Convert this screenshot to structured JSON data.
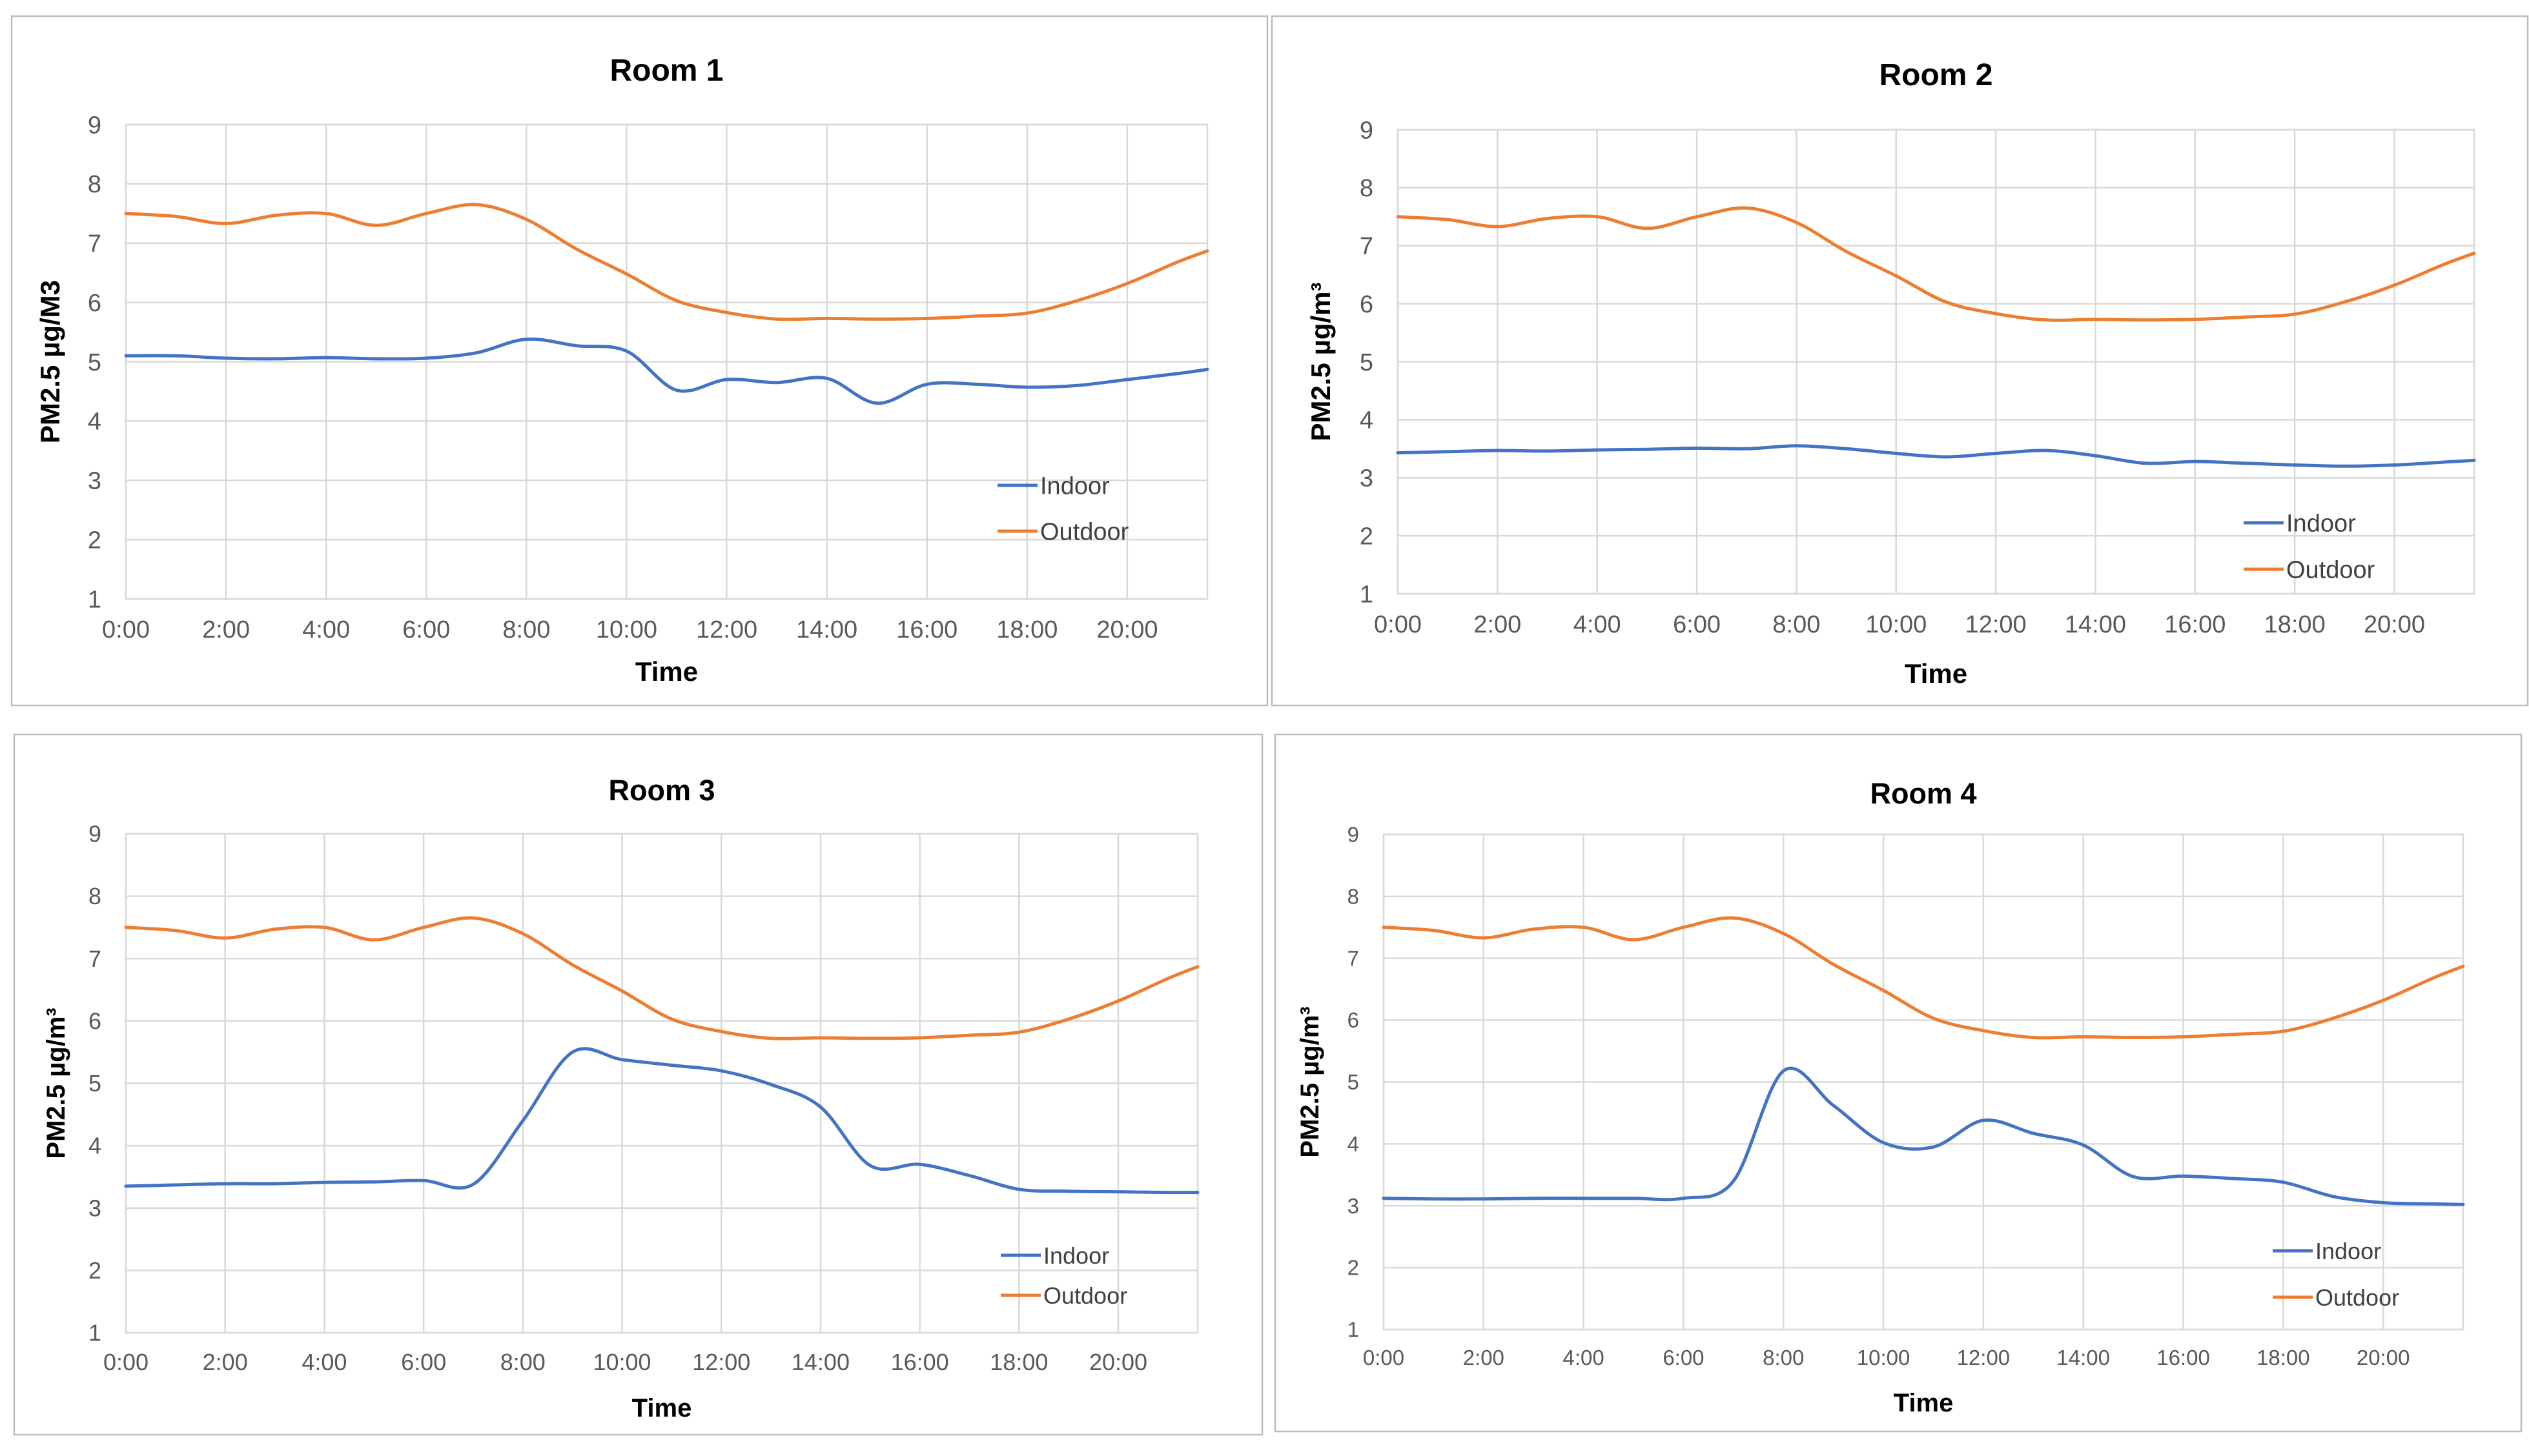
{
  "colors": {
    "indoor": "#4472C4",
    "outdoor": "#ED7D31"
  },
  "chart_data": [
    {
      "type": "line",
      "title": "Room 1",
      "xlabel": "Time",
      "ylabel": "PM2.5 µg/M3",
      "ylim": [
        1,
        9
      ],
      "yticks": [
        "1",
        "2",
        "3",
        "4",
        "5",
        "6",
        "7",
        "8",
        "9"
      ],
      "xticks": [
        "0:00",
        "2:00",
        "4:00",
        "6:00",
        "8:00",
        "10:00",
        "12:00",
        "14:00",
        "16:00",
        "18:00",
        "20:00"
      ],
      "legend": {
        "position": "bottom-right"
      },
      "x": [
        0,
        1,
        2,
        3,
        4,
        5,
        6,
        7,
        8,
        9,
        10,
        11,
        12,
        13,
        14,
        15,
        16,
        17,
        18,
        19,
        20,
        21,
        21.6
      ],
      "series": [
        {
          "name": "Indoor",
          "color_key": "indoor",
          "values": [
            5.1,
            5.1,
            5.06,
            5.05,
            5.07,
            5.05,
            5.06,
            5.15,
            5.38,
            5.27,
            5.18,
            4.52,
            4.7,
            4.65,
            4.72,
            4.3,
            4.62,
            4.62,
            4.57,
            4.6,
            4.7,
            4.8,
            4.87
          ]
        },
        {
          "name": "Outdoor",
          "color_key": "outdoor",
          "values": [
            7.5,
            7.45,
            7.33,
            7.47,
            7.5,
            7.3,
            7.5,
            7.65,
            7.4,
            6.9,
            6.48,
            6.03,
            5.83,
            5.72,
            5.73,
            5.72,
            5.73,
            5.77,
            5.82,
            6.03,
            6.32,
            6.68,
            6.87
          ]
        }
      ]
    },
    {
      "type": "line",
      "title": "Room 2",
      "xlabel": "Time",
      "ylabel": "PM2.5 µg/m³",
      "ylim": [
        1,
        9
      ],
      "yticks": [
        "1",
        "2",
        "3",
        "4",
        "5",
        "6",
        "7",
        "8",
        "9"
      ],
      "xticks": [
        "0:00",
        "2:00",
        "4:00",
        "6:00",
        "8:00",
        "10:00",
        "12:00",
        "14:00",
        "16:00",
        "18:00",
        "20:00"
      ],
      "legend": {
        "position": "bottom-right"
      },
      "x": [
        0,
        1,
        2,
        3,
        4,
        5,
        6,
        7,
        8,
        9,
        10,
        11,
        12,
        13,
        14,
        15,
        16,
        17,
        18,
        19,
        20,
        21,
        21.6
      ],
      "series": [
        {
          "name": "Indoor",
          "color_key": "indoor",
          "values": [
            3.43,
            3.45,
            3.47,
            3.46,
            3.48,
            3.49,
            3.51,
            3.5,
            3.55,
            3.5,
            3.42,
            3.36,
            3.42,
            3.47,
            3.38,
            3.25,
            3.28,
            3.25,
            3.22,
            3.2,
            3.22,
            3.27,
            3.3
          ]
        },
        {
          "name": "Outdoor",
          "color_key": "outdoor",
          "values": [
            7.5,
            7.45,
            7.33,
            7.47,
            7.5,
            7.3,
            7.5,
            7.65,
            7.4,
            6.9,
            6.48,
            6.03,
            5.83,
            5.72,
            5.73,
            5.72,
            5.73,
            5.77,
            5.82,
            6.03,
            6.32,
            6.68,
            6.87
          ]
        }
      ]
    },
    {
      "type": "line",
      "title": "Room 3",
      "xlabel": "Time",
      "ylabel": "PM2.5 µg/m³",
      "ylim": [
        1,
        9
      ],
      "yticks": [
        "1",
        "2",
        "3",
        "4",
        "5",
        "6",
        "7",
        "8",
        "9"
      ],
      "xticks": [
        "0:00",
        "2:00",
        "4:00",
        "6:00",
        "8:00",
        "10:00",
        "12:00",
        "14:00",
        "16:00",
        "18:00",
        "20:00"
      ],
      "legend": {
        "position": "bottom-right"
      },
      "x": [
        0,
        1,
        2,
        3,
        4,
        5,
        6,
        7,
        8,
        9,
        10,
        11,
        12,
        13,
        14,
        15,
        16,
        17,
        18,
        19,
        20,
        21,
        21.6
      ],
      "series": [
        {
          "name": "Indoor",
          "color_key": "indoor",
          "values": [
            3.35,
            3.37,
            3.39,
            3.39,
            3.41,
            3.42,
            3.44,
            3.38,
            4.4,
            5.5,
            5.38,
            5.29,
            5.2,
            4.98,
            4.62,
            3.68,
            3.7,
            3.52,
            3.3,
            3.27,
            3.26,
            3.25,
            3.25
          ]
        },
        {
          "name": "Outdoor",
          "color_key": "outdoor",
          "values": [
            7.5,
            7.45,
            7.33,
            7.47,
            7.5,
            7.3,
            7.5,
            7.65,
            7.4,
            6.9,
            6.48,
            6.03,
            5.83,
            5.72,
            5.73,
            5.72,
            5.73,
            5.77,
            5.82,
            6.03,
            6.32,
            6.68,
            6.87
          ]
        }
      ]
    },
    {
      "type": "line",
      "title": "Room 4",
      "xlabel": "Time",
      "ylabel": "PM2.5 µg/m³",
      "ylim": [
        1,
        9
      ],
      "yticks": [
        "1",
        "2",
        "3",
        "4",
        "5",
        "6",
        "7",
        "8",
        "9"
      ],
      "xticks": [
        "0:00",
        "2:00",
        "4:00",
        "6:00",
        "8:00",
        "10:00",
        "12:00",
        "14:00",
        "16:00",
        "18:00",
        "20:00"
      ],
      "legend": {
        "position": "bottom-right"
      },
      "x": [
        0,
        1,
        2,
        3,
        4,
        5,
        6,
        7,
        8,
        9,
        10,
        11,
        12,
        13,
        14,
        15,
        16,
        17,
        18,
        19,
        20,
        21,
        21.6
      ],
      "series": [
        {
          "name": "Indoor",
          "color_key": "indoor",
          "values": [
            3.12,
            3.11,
            3.11,
            3.12,
            3.12,
            3.12,
            3.12,
            3.4,
            5.18,
            4.62,
            4.02,
            3.95,
            4.38,
            4.17,
            3.98,
            3.47,
            3.48,
            3.44,
            3.38,
            3.15,
            3.05,
            3.03,
            3.02
          ]
        },
        {
          "name": "Outdoor",
          "color_key": "outdoor",
          "values": [
            7.5,
            7.45,
            7.33,
            7.47,
            7.5,
            7.3,
            7.5,
            7.65,
            7.4,
            6.9,
            6.48,
            6.03,
            5.83,
            5.72,
            5.73,
            5.72,
            5.73,
            5.77,
            5.82,
            6.03,
            6.32,
            6.68,
            6.87
          ]
        }
      ]
    }
  ]
}
